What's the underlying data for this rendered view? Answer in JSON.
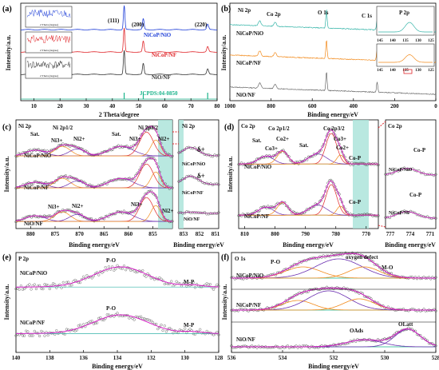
{
  "colors": {
    "blue": "#1f3fd8",
    "red": "#e0272b",
    "black": "#333333",
    "green": "#19b38a",
    "magenta": "#d61fc6",
    "purple": "#6b2fb0",
    "orange": "#f28a1b",
    "teal": "#34b4a8",
    "gray": "#6a6a6a"
  },
  "chart_data": [
    {
      "panel": "(a)",
      "type": "line",
      "xlabel": "2 Theta/degree",
      "ylabel": "Intensity/a.u.",
      "xlim": [
        5,
        80
      ],
      "xticks": [
        "10",
        "20",
        "30",
        "40",
        "50",
        "60",
        "70",
        "80"
      ],
      "peaks": [
        {
          "label": "(111)",
          "x": 44.5
        },
        {
          "label": "(200)",
          "x": 51.8
        },
        {
          "label": "(220)",
          "x": 76.4
        }
      ],
      "series": [
        {
          "name": "NiCoP/NiO",
          "color": "#1f3fd8"
        },
        {
          "name": "NiCoP/NF",
          "color": "#e0272b"
        },
        {
          "name": "NiO/NF",
          "color": "#333333"
        },
        {
          "name": "JCPDS:04-0850",
          "color": "#19b38a"
        }
      ],
      "inset_xlabel": "2 Theta (degree)",
      "inset_ylabel": "Intensity (a.u.)"
    },
    {
      "panel": "(b)",
      "type": "line",
      "xlabel": "Binding energy/eV",
      "ylabel": "Intensity/a.u.",
      "xlim": [
        1000,
        0
      ],
      "xticks": [
        "1000",
        "800",
        "600",
        "400",
        "200",
        "0"
      ],
      "peaks": [
        {
          "label": "Ni 2p",
          "x": 855
        },
        {
          "label": "Co 2p",
          "x": 780
        },
        {
          "label": "O 1s",
          "x": 531
        },
        {
          "label": "C 1s",
          "x": 285
        }
      ],
      "series": [
        {
          "name": "NiCoP/NiO",
          "color": "#19b38a"
        },
        {
          "name": "NiCoP/NF",
          "color": "#f28a1b"
        },
        {
          "name": "NiO/NF",
          "color": "#6a6a6a"
        }
      ],
      "inset": {
        "title": "P 2p",
        "xticks": [
          "145",
          "140",
          "135",
          "130",
          "125"
        ]
      }
    },
    {
      "panel": "(c)",
      "type": "line",
      "title": "Ni 2p",
      "xlabel": "Binding energy/eV",
      "ylabel": "Intensity/a.u.",
      "xlim": [
        883,
        851
      ],
      "xticks": [
        "880",
        "875",
        "870",
        "865",
        "860",
        "855"
      ],
      "labels": [
        "Sat.",
        "Ni 2p1/2",
        "Ni 2p3/2",
        "Ni3+",
        "Ni2+",
        "Sat.",
        "Ni3+",
        "Ni2+",
        "Ni3+",
        "Ni2+",
        "Ni3+",
        "Ni2+"
      ],
      "series": [
        {
          "name": "NiCoP/NiO"
        },
        {
          "name": "NiCoP/NF"
        },
        {
          "name": "NiO/NF"
        }
      ],
      "zoom": {
        "title": "Ni 2p",
        "xticks": [
          "853",
          "852",
          "851"
        ],
        "labels": [
          "δ+",
          "δ+"
        ],
        "series": [
          "NiCoP/NiO",
          "NiCoP/NF",
          "NiO/NF"
        ]
      }
    },
    {
      "panel": "(d)",
      "type": "line",
      "title": "Co 2p",
      "xlabel": "Binding energy/eV",
      "ylabel": "Intensity/a.u.",
      "xlim": [
        812,
        766
      ],
      "xticks": [
        "810",
        "800",
        "790",
        "780",
        "770"
      ],
      "labels": [
        "Sat.",
        "Co 2p1/2",
        "Co2+",
        "Co3+",
        "Sat.",
        "Co 2p3/2",
        "Co3+",
        "Co2+",
        "Co-P",
        "Co-P"
      ],
      "series": [
        {
          "name": "NiCoP/NiO"
        },
        {
          "name": "NiCoP/NF"
        }
      ],
      "zoom": {
        "title": "Co 2p",
        "xticks": [
          "777",
          "774",
          "771"
        ],
        "labels": [
          "Co-P",
          "Co-P"
        ],
        "series": [
          "NiCoP/NiO",
          "NiCoP/NF"
        ]
      }
    },
    {
      "panel": "(e)",
      "type": "line",
      "title": "P 2p",
      "xlabel": "Binding energy/eV",
      "ylabel": "Intensity/a.u.",
      "xlim": [
        140,
        128
      ],
      "xticks": [
        "140",
        "138",
        "136",
        "134",
        "132",
        "130",
        "128"
      ],
      "labels": [
        "P-O",
        "M-P",
        "P-O",
        "M-P"
      ],
      "series": [
        {
          "name": "NiCoP/NiO"
        },
        {
          "name": "NiCoP/NF"
        }
      ]
    },
    {
      "panel": "(f)",
      "type": "line",
      "title": "O 1s",
      "xlabel": "Binding energy/eV",
      "ylabel": "Intensity/a.u.",
      "xlim": [
        536,
        528
      ],
      "xticks": [
        "536",
        "534",
        "532",
        "530",
        "528"
      ],
      "labels": [
        "P-O",
        "oxygen defect",
        "M-O",
        "OAds",
        "OLatt"
      ],
      "series": [
        {
          "name": "NiCoP/NiO"
        },
        {
          "name": "NiCoP/NF"
        },
        {
          "name": "NiO/NF"
        }
      ]
    }
  ]
}
